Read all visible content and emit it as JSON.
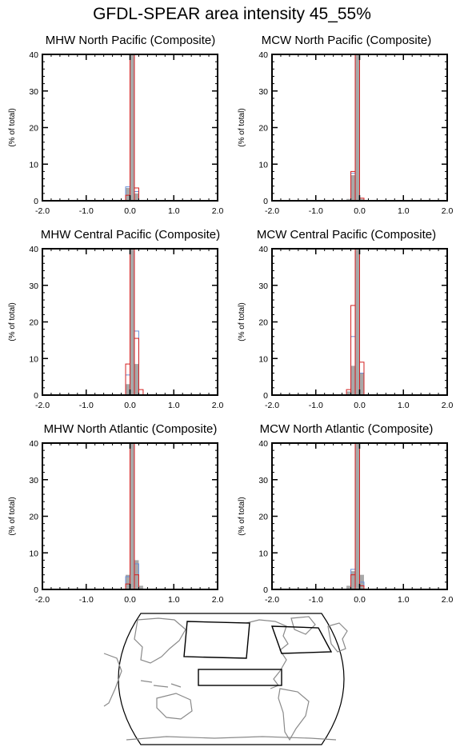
{
  "title": "GFDL-SPEAR area intensity 45_55%",
  "colors": {
    "shaded": "#a8a8a8",
    "blue": "#6a8fd8",
    "red": "#d42020",
    "map_coast": "#8a8a8a"
  },
  "chart_data": [
    {
      "type": "bar",
      "title": "MHW North Pacific (Composite)",
      "xlim": [
        -2.0,
        2.0
      ],
      "ylim": [
        0,
        40
      ],
      "bin_width": 0.1,
      "xticks": [
        "-2.0",
        "-1.0",
        "0.0",
        "1.0",
        "2.0"
      ],
      "yticks": [
        "0",
        "10",
        "20",
        "30",
        "40"
      ],
      "ylabel": "(% of total)",
      "series": [
        {
          "style": "filled",
          "color": "gray",
          "bins": [
            {
              "x": -0.05,
              "y": 3.5
            },
            {
              "x": 0.05,
              "y": 40
            },
            {
              "x": 0.15,
              "y": 2.0
            }
          ]
        },
        {
          "style": "outline",
          "color": "blue",
          "bins": [
            {
              "x": -0.05,
              "y": 3.8
            },
            {
              "x": 0.05,
              "y": 40
            },
            {
              "x": 0.15,
              "y": 2.5
            }
          ]
        },
        {
          "style": "outline",
          "color": "red",
          "bins": [
            {
              "x": -0.05,
              "y": 1.5
            },
            {
              "x": 0.05,
              "y": 40
            },
            {
              "x": 0.15,
              "y": 3.5
            }
          ]
        }
      ]
    },
    {
      "type": "bar",
      "title": "MCW North Pacific (Composite)",
      "xlim": [
        -2.0,
        2.0
      ],
      "ylim": [
        0,
        40
      ],
      "bin_width": 0.1,
      "xticks": [
        "-2.0",
        "-1.0",
        "0.0",
        "1.0",
        "2.0"
      ],
      "yticks": [
        "0",
        "10",
        "20",
        "30",
        "40"
      ],
      "ylabel": "(% of total)",
      "series": [
        {
          "style": "filled",
          "color": "gray",
          "bins": [
            {
              "x": -0.25,
              "y": 0.5
            },
            {
              "x": -0.15,
              "y": 7.0
            },
            {
              "x": -0.05,
              "y": 40
            },
            {
              "x": 0.05,
              "y": 0.5
            }
          ]
        },
        {
          "style": "outline",
          "color": "blue",
          "bins": [
            {
              "x": -0.15,
              "y": 7.5
            },
            {
              "x": -0.05,
              "y": 40
            }
          ]
        },
        {
          "style": "outline",
          "color": "red",
          "bins": [
            {
              "x": -0.15,
              "y": 8.0
            },
            {
              "x": -0.05,
              "y": 40
            },
            {
              "x": 0.05,
              "y": 0.7
            }
          ]
        }
      ]
    },
    {
      "type": "bar",
      "title": "MHW Central Pacific (Composite)",
      "xlim": [
        -2.0,
        2.0
      ],
      "ylim": [
        0,
        40
      ],
      "bin_width": 0.1,
      "xticks": [
        "-2.0",
        "-1.0",
        "0.0",
        "1.0",
        "2.0"
      ],
      "yticks": [
        "0",
        "10",
        "20",
        "30",
        "40"
      ],
      "ylabel": "(% of total)",
      "series": [
        {
          "style": "filled",
          "color": "gray",
          "bins": [
            {
              "x": -0.05,
              "y": 3.0
            },
            {
              "x": 0.05,
              "y": 40
            },
            {
              "x": 0.15,
              "y": 8.5
            }
          ]
        },
        {
          "style": "outline",
          "color": "blue",
          "bins": [
            {
              "x": -0.05,
              "y": 5.5
            },
            {
              "x": 0.05,
              "y": 40
            },
            {
              "x": 0.15,
              "y": 17.5
            }
          ]
        },
        {
          "style": "outline",
          "color": "red",
          "bins": [
            {
              "x": -0.05,
              "y": 8.5
            },
            {
              "x": 0.05,
              "y": 40
            },
            {
              "x": 0.15,
              "y": 15.5
            },
            {
              "x": 0.25,
              "y": 1.5
            }
          ]
        }
      ]
    },
    {
      "type": "bar",
      "title": "MCW Central Pacific (Composite)",
      "xlim": [
        -2.0,
        2.0
      ],
      "ylim": [
        0,
        40
      ],
      "bin_width": 0.1,
      "xticks": [
        "-2.0",
        "-1.0",
        "0.0",
        "1.0",
        "2.0"
      ],
      "yticks": [
        "0",
        "10",
        "20",
        "30",
        "40"
      ],
      "ylabel": "(% of total)",
      "series": [
        {
          "style": "filled",
          "color": "gray",
          "bins": [
            {
              "x": -0.25,
              "y": 1.0
            },
            {
              "x": -0.15,
              "y": 8.0
            },
            {
              "x": -0.05,
              "y": 40
            },
            {
              "x": 0.05,
              "y": 6.0
            }
          ]
        },
        {
          "style": "outline",
          "color": "blue",
          "bins": [
            {
              "x": -0.15,
              "y": 16.0
            },
            {
              "x": -0.05,
              "y": 40
            },
            {
              "x": 0.05,
              "y": 6.0
            }
          ]
        },
        {
          "style": "outline",
          "color": "red",
          "bins": [
            {
              "x": -0.25,
              "y": 1.5
            },
            {
              "x": -0.15,
              "y": 24.5
            },
            {
              "x": -0.05,
              "y": 40
            },
            {
              "x": 0.05,
              "y": 9.0
            }
          ]
        }
      ]
    },
    {
      "type": "bar",
      "title": "MHW North Atlantic (Composite)",
      "xlim": [
        -2.0,
        2.0
      ],
      "ylim": [
        0,
        40
      ],
      "bin_width": 0.1,
      "xticks": [
        "-2.0",
        "-1.0",
        "0.0",
        "1.0",
        "2.0"
      ],
      "yticks": [
        "0",
        "10",
        "20",
        "30",
        "40"
      ],
      "ylabel": "(% of total)",
      "series": [
        {
          "style": "filled",
          "color": "gray",
          "bins": [
            {
              "x": -0.05,
              "y": 4.0
            },
            {
              "x": 0.05,
              "y": 40
            },
            {
              "x": 0.15,
              "y": 8.0
            },
            {
              "x": 0.25,
              "y": 1.0
            }
          ]
        },
        {
          "style": "outline",
          "color": "blue",
          "bins": [
            {
              "x": -0.05,
              "y": 3.5
            },
            {
              "x": 0.05,
              "y": 40
            },
            {
              "x": 0.15,
              "y": 7.0
            }
          ]
        },
        {
          "style": "outline",
          "color": "red",
          "bins": [
            {
              "x": -0.05,
              "y": 1.5
            },
            {
              "x": 0.05,
              "y": 40
            },
            {
              "x": 0.15,
              "y": 4.0
            }
          ]
        }
      ]
    },
    {
      "type": "bar",
      "title": "MCW North Atlantic (Composite)",
      "xlim": [
        -2.0,
        2.0
      ],
      "ylim": [
        0,
        40
      ],
      "bin_width": 0.1,
      "xticks": [
        "-2.0",
        "-1.0",
        "0.0",
        "1.0",
        "2.0"
      ],
      "yticks": [
        "0",
        "10",
        "20",
        "30",
        "40"
      ],
      "ylabel": "(% of total)",
      "series": [
        {
          "style": "filled",
          "color": "gray",
          "bins": [
            {
              "x": -0.25,
              "y": 1.0
            },
            {
              "x": -0.15,
              "y": 5.0
            },
            {
              "x": -0.05,
              "y": 40
            },
            {
              "x": 0.05,
              "y": 4.0
            }
          ]
        },
        {
          "style": "outline",
          "color": "blue",
          "bins": [
            {
              "x": -0.15,
              "y": 5.5
            },
            {
              "x": -0.05,
              "y": 40
            },
            {
              "x": 0.05,
              "y": 2.0
            }
          ]
        },
        {
          "style": "outline",
          "color": "red",
          "bins": [
            {
              "x": -0.15,
              "y": 4.0
            },
            {
              "x": -0.05,
              "y": 40
            },
            {
              "x": 0.05,
              "y": 1.0
            }
          ]
        }
      ]
    }
  ]
}
